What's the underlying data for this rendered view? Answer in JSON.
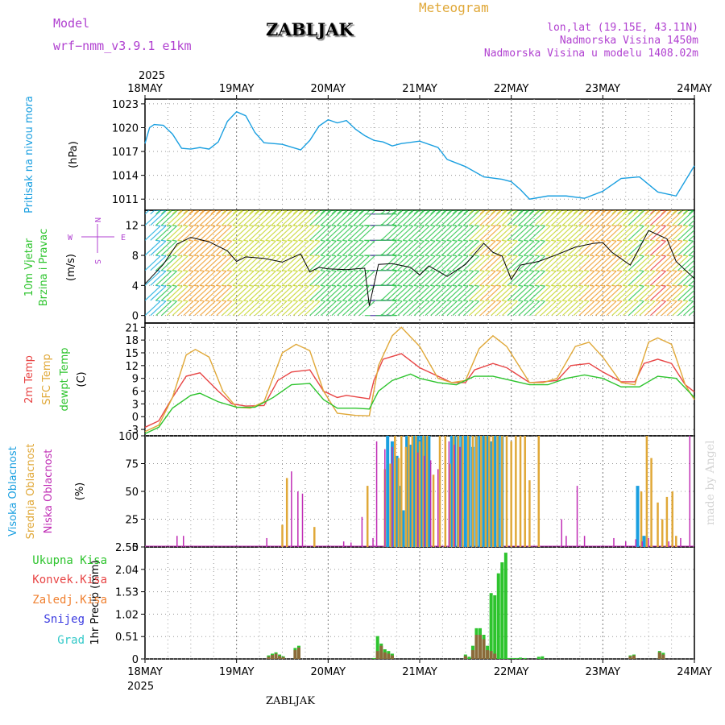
{
  "header": {
    "model_label": "Model",
    "model_name": "wrf−nmm_v3.9.1  e1km",
    "station": "ZABLJAK",
    "meteogram_label": "Meteogram",
    "lonlat": "lon,lat (19.15E, 43.11N)",
    "elevation": "Nadmorska Visina 1450m",
    "model_elevation": "Nadmorska Visina u modelu 1408.02m",
    "top_year": "2025",
    "bottom_year": "2025",
    "footer_station": "ZABLJAK",
    "credit": "made by Angel"
  },
  "days": [
    "18MAY",
    "19MAY",
    "20MAY",
    "21MAY",
    "22MAY",
    "23MAY",
    "24MAY"
  ],
  "panel_labels": {
    "pressure": [
      "Pritisak na nivou mora",
      "(hPa)"
    ],
    "wind": [
      "10m Vjetar",
      "Brzina i Pravac",
      "(m/s)"
    ],
    "compass": [
      "N",
      "S",
      "E",
      "W"
    ],
    "temp": [
      "2m Temp",
      "SFC Temp",
      "dewpt Temp",
      "(C)"
    ],
    "cloud": [
      "Visoka Oblacnost",
      "Srednja Oblacnost",
      "Niska  Oblacnost",
      "(%)"
    ],
    "precip_axis": "1hr Precip (mm)",
    "precip_legend": [
      "Ukupna  Kisa",
      "Konvek.Kisa",
      "Zaledj.Kisa",
      "Snijeg",
      "Grad"
    ]
  },
  "colors": {
    "pressure": "#1a9fe0",
    "t2m": "#e84545",
    "tsfc": "#e0a838",
    "dewpt": "#2ec42e",
    "cloud_high": "#1a9fe0",
    "cloud_mid": "#e0a838",
    "cloud_low": "#c02db5",
    "rain_total": "#2ec42e",
    "rain_conv": "#8b6a3a",
    "legend_total": "#2ec42e",
    "legend_conv": "#e84545",
    "legend_frz": "#f08030",
    "legend_snow": "#3a3ae0",
    "legend_grad": "#30c8c8",
    "header_purple": "#b040d0",
    "header_orange": "#e0a838"
  },
  "chart_data": [
    {
      "type": "line",
      "name": "pressure",
      "x_range_days": [
        0,
        6
      ],
      "ylim": [
        1009.6,
        1023.6
      ],
      "yticks": [
        1011,
        1014,
        1017,
        1020,
        1023
      ],
      "grid": true,
      "x": [
        0,
        0.05,
        0.1,
        0.2,
        0.3,
        0.4,
        0.5,
        0.6,
        0.7,
        0.8,
        0.9,
        1.0,
        1.1,
        1.2,
        1.3,
        1.5,
        1.7,
        1.8,
        1.9,
        2.0,
        2.1,
        2.2,
        2.3,
        2.4,
        2.5,
        2.6,
        2.7,
        2.8,
        3.0,
        3.2,
        3.3,
        3.5,
        3.7,
        3.9,
        4.0,
        4.1,
        4.2,
        4.4,
        4.6,
        4.8,
        5.0,
        5.2,
        5.4,
        5.6,
        5.8,
        6.0
      ],
      "values": [
        1018.0,
        1020.0,
        1020.4,
        1020.3,
        1019.2,
        1017.4,
        1017.3,
        1017.5,
        1017.3,
        1018.2,
        1020.8,
        1022.0,
        1021.5,
        1019.4,
        1018.1,
        1017.9,
        1017.2,
        1018.4,
        1020.2,
        1021.0,
        1020.6,
        1020.9,
        1019.8,
        1019.0,
        1018.4,
        1018.2,
        1017.7,
        1018.0,
        1018.3,
        1017.5,
        1016.0,
        1015.1,
        1013.8,
        1013.5,
        1013.2,
        1012.2,
        1011.0,
        1011.4,
        1011.4,
        1011.1,
        1012.0,
        1013.6,
        1013.8,
        1011.9,
        1011.4,
        1015.2
      ]
    },
    {
      "type": "line",
      "name": "wind_speed",
      "ylim": [
        -1,
        14
      ],
      "yticks": [
        0,
        4,
        8,
        12
      ],
      "grid": true,
      "x": [
        0,
        0.2,
        0.35,
        0.5,
        0.7,
        0.9,
        1.0,
        1.1,
        1.3,
        1.5,
        1.7,
        1.8,
        1.9,
        2.0,
        2.2,
        2.4,
        2.45,
        2.55,
        2.7,
        2.9,
        3.0,
        3.1,
        3.3,
        3.5,
        3.7,
        3.8,
        3.9,
        4.0,
        4.1,
        4.3,
        4.5,
        4.7,
        4.9,
        5.0,
        5.1,
        5.3,
        5.5,
        5.7,
        5.8,
        6.0
      ],
      "values": [
        4.2,
        6.8,
        9.5,
        10.4,
        9.8,
        8.6,
        7.2,
        7.8,
        7.6,
        7.1,
        8.2,
        5.8,
        6.4,
        6.2,
        6.1,
        6.3,
        1.3,
        6.8,
        6.9,
        6.4,
        5.4,
        6.6,
        5.2,
        6.8,
        9.6,
        8.4,
        7.9,
        4.8,
        6.7,
        7.2,
        8.1,
        9.1,
        9.6,
        9.7,
        8.4,
        6.7,
        11.3,
        10.2,
        7.2,
        4.9
      ]
    },
    {
      "type": "line",
      "name": "temperature",
      "ylim": [
        -4.5,
        22
      ],
      "yticks": [
        -3,
        0,
        3,
        6,
        9,
        12,
        15,
        18,
        21
      ],
      "grid": true,
      "series": [
        {
          "name": "2m Temp",
          "x": [
            0,
            0.15,
            0.3,
            0.45,
            0.6,
            0.8,
            0.95,
            1.1,
            1.3,
            1.45,
            1.6,
            1.8,
            1.95,
            2.1,
            2.2,
            2.35,
            2.45,
            2.5,
            2.6,
            2.8,
            3.0,
            3.2,
            3.35,
            3.5,
            3.6,
            3.8,
            3.95,
            4.2,
            4.35,
            4.5,
            4.65,
            4.85,
            5.0,
            5.2,
            5.35,
            5.45,
            5.6,
            5.75,
            5.9,
            6.0
          ],
          "values": [
            -2.5,
            -1.0,
            4.5,
            9.5,
            10.3,
            6.0,
            3.0,
            2.5,
            2.6,
            8.5,
            10.5,
            11.0,
            6.0,
            4.5,
            5.0,
            4.5,
            4.2,
            8.5,
            13.5,
            14.8,
            11.5,
            9.5,
            8.0,
            8.0,
            11.0,
            12.5,
            11.5,
            8.0,
            8.2,
            8.5,
            12.0,
            12.5,
            10.5,
            8.2,
            8.2,
            12.5,
            13.5,
            12.5,
            7.5,
            5.8
          ]
        },
        {
          "name": "SFC Temp",
          "x": [
            0,
            0.15,
            0.3,
            0.45,
            0.55,
            0.7,
            0.85,
            1.0,
            1.15,
            1.3,
            1.5,
            1.65,
            1.8,
            1.95,
            2.1,
            2.3,
            2.45,
            2.55,
            2.7,
            2.8,
            3.0,
            3.2,
            3.35,
            3.5,
            3.65,
            3.8,
            3.95,
            4.2,
            4.35,
            4.5,
            4.7,
            4.85,
            5.0,
            5.2,
            5.35,
            5.5,
            5.6,
            5.75,
            5.9,
            6.0
          ],
          "values": [
            -3.5,
            -2.0,
            4.5,
            14.5,
            15.8,
            14.0,
            6.0,
            2.2,
            2.0,
            3.5,
            15.0,
            17.0,
            15.5,
            6.0,
            0.8,
            0.3,
            0.2,
            12.0,
            19.0,
            21.0,
            16.5,
            9.0,
            8.0,
            8.5,
            16.0,
            19.0,
            16.5,
            8.0,
            8.0,
            9.0,
            16.5,
            17.5,
            14.0,
            8.0,
            7.5,
            17.5,
            18.5,
            17.0,
            7.5,
            4.0
          ]
        },
        {
          "name": "dewpt Temp",
          "x": [
            0,
            0.15,
            0.3,
            0.5,
            0.6,
            0.8,
            1.0,
            1.2,
            1.4,
            1.6,
            1.8,
            1.95,
            2.1,
            2.3,
            2.45,
            2.55,
            2.7,
            2.9,
            3.0,
            3.2,
            3.4,
            3.6,
            3.8,
            4.0,
            4.2,
            4.4,
            4.6,
            4.8,
            5.0,
            5.2,
            5.4,
            5.6,
            5.8,
            6.0
          ],
          "values": [
            -4.0,
            -2.5,
            2.0,
            5.0,
            5.5,
            3.5,
            2.2,
            2.2,
            4.5,
            7.5,
            7.8,
            4.0,
            2.0,
            2.0,
            1.8,
            6.0,
            8.5,
            10.0,
            9.0,
            8.0,
            7.5,
            9.5,
            9.5,
            8.5,
            7.5,
            7.5,
            9.0,
            9.8,
            9.0,
            7.0,
            7.0,
            9.5,
            9.0,
            4.5
          ]
        }
      ]
    },
    {
      "type": "bar",
      "name": "cloud_cover",
      "ylim": [
        0,
        100
      ],
      "yticks": [
        0,
        25,
        50,
        75,
        100
      ],
      "grid": true,
      "series": [
        {
          "name": "Niska  Oblacnost",
          "x": [
            0.35,
            0.42,
            1.33,
            1.6,
            1.67,
            1.72,
            2.17,
            2.25,
            2.37,
            2.49,
            2.53,
            2.62,
            2.7,
            2.98,
            3.05,
            3.12,
            3.2,
            3.32,
            3.38,
            3.44,
            4.55,
            4.6,
            4.72,
            4.8,
            5.12,
            5.25,
            5.36,
            5.43,
            5.5,
            5.72,
            5.85,
            5.95
          ],
          "values": [
            10,
            10,
            8,
            68,
            50,
            48,
            5,
            4,
            27,
            8,
            95,
            88,
            90,
            85,
            82,
            78,
            70,
            95,
            92,
            90,
            25,
            10,
            55,
            10,
            8,
            5,
            7,
            5,
            8,
            5,
            8,
            100
          ]
        },
        {
          "name": "Srednja Oblacnost",
          "x": [
            1.5,
            1.55,
            1.85,
            2.43,
            2.62,
            2.68,
            2.73,
            2.77,
            2.8,
            2.85,
            2.88,
            2.92,
            2.96,
            3.0,
            3.04,
            3.08,
            3.15,
            3.22,
            3.28,
            3.33,
            3.37,
            3.42,
            3.47,
            3.53,
            3.58,
            3.62,
            3.67,
            3.72,
            3.76,
            3.8,
            3.85,
            3.9,
            3.95,
            4.0,
            4.05,
            4.1,
            4.15,
            4.2,
            4.3,
            5.42,
            5.48,
            5.53,
            5.6,
            5.65,
            5.7,
            5.76,
            5.8
          ],
          "values": [
            20,
            62,
            18,
            55,
            70,
            75,
            100,
            80,
            100,
            90,
            100,
            100,
            100,
            95,
            100,
            100,
            65,
            100,
            100,
            75,
            100,
            100,
            100,
            100,
            100,
            100,
            100,
            100,
            100,
            100,
            100,
            100,
            100,
            95,
            100,
            100,
            100,
            60,
            100,
            50,
            100,
            80,
            40,
            25,
            45,
            50,
            10
          ]
        },
        {
          "name": "Visoka Oblacnost",
          "x": [
            2.65,
            2.7,
            2.75,
            2.78,
            2.82,
            2.86,
            2.9,
            2.94,
            2.98,
            3.02,
            3.06,
            3.1,
            3.35,
            3.38,
            3.42,
            3.46,
            3.5,
            3.54,
            3.58,
            3.62,
            3.66,
            3.7,
            3.74,
            3.78,
            3.82,
            3.86,
            3.9,
            5.38,
            5.45
          ],
          "values": [
            100,
            95,
            82,
            55,
            33,
            100,
            92,
            100,
            100,
            100,
            100,
            100,
            100,
            100,
            100,
            100,
            100,
            100,
            90,
            100,
            100,
            100,
            100,
            95,
            100,
            100,
            100,
            55,
            10
          ]
        }
      ]
    },
    {
      "type": "bar",
      "name": "precipitation",
      "ylim": [
        0,
        2.55
      ],
      "yticks": [
        0,
        0.51,
        1.02,
        1.53,
        2.04,
        2.55
      ],
      "grid": true,
      "series": [
        {
          "name": "Ukupna  Kisa",
          "x": [
            1.35,
            1.39,
            1.43,
            1.47,
            1.51,
            1.64,
            1.68,
            2.5,
            2.54,
            2.58,
            2.62,
            2.66,
            2.7,
            3.5,
            3.54,
            3.58,
            3.62,
            3.66,
            3.7,
            3.74,
            3.78,
            3.82,
            3.86,
            3.9,
            3.94,
            3.98,
            4.02,
            4.06,
            4.1,
            4.15,
            4.3,
            4.34,
            5.3,
            5.34,
            5.62,
            5.66
          ],
          "values": [
            0.08,
            0.12,
            0.15,
            0.1,
            0.06,
            0.25,
            0.3,
            0.02,
            0.52,
            0.35,
            0.22,
            0.18,
            0.12,
            0.1,
            0.05,
            0.3,
            0.7,
            0.7,
            0.55,
            0.3,
            1.5,
            1.45,
            1.95,
            2.2,
            2.42,
            0.02,
            0.02,
            0.02,
            0.03,
            0.02,
            0.05,
            0.06,
            0.08,
            0.1,
            0.18,
            0.14
          ]
        },
        {
          "name": "Konvek.Kisa",
          "x": [
            1.35,
            1.39,
            1.43,
            1.47,
            1.51,
            1.64,
            1.68,
            2.54,
            2.58,
            2.62,
            2.66,
            2.7,
            3.5,
            3.58,
            3.62,
            3.66,
            3.7,
            3.74,
            3.78,
            3.82,
            5.3,
            5.34,
            5.62,
            5.66
          ],
          "values": [
            0.05,
            0.09,
            0.12,
            0.07,
            0.04,
            0.2,
            0.26,
            0.18,
            0.3,
            0.15,
            0.12,
            0.08,
            0.07,
            0.2,
            0.55,
            0.55,
            0.45,
            0.2,
            0.18,
            0.12,
            0.06,
            0.08,
            0.15,
            0.1
          ]
        }
      ]
    }
  ]
}
